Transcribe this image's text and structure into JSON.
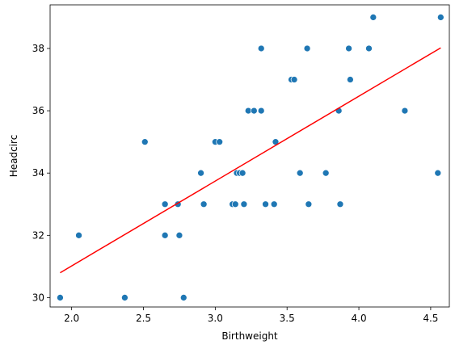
{
  "chart_data": {
    "type": "scatter",
    "title": "",
    "xlabel": "Birthweight",
    "ylabel": "Headcirc",
    "xlim": [
      1.85,
      4.63
    ],
    "ylim": [
      29.7,
      39.4
    ],
    "xticks": [
      2.0,
      2.5,
      3.0,
      3.5,
      4.0,
      4.5
    ],
    "xtick_labels": [
      "2.0",
      "2.5",
      "3.0",
      "3.5",
      "4.0",
      "4.5"
    ],
    "yticks": [
      30,
      32,
      34,
      36,
      38
    ],
    "ytick_labels": [
      "30",
      "32",
      "34",
      "36",
      "38"
    ],
    "grid": false,
    "points": [
      {
        "x": 1.92,
        "y": 30
      },
      {
        "x": 2.05,
        "y": 32
      },
      {
        "x": 2.37,
        "y": 30
      },
      {
        "x": 2.51,
        "y": 35
      },
      {
        "x": 2.65,
        "y": 33
      },
      {
        "x": 2.65,
        "y": 32
      },
      {
        "x": 2.74,
        "y": 33
      },
      {
        "x": 2.75,
        "y": 32
      },
      {
        "x": 2.78,
        "y": 30
      },
      {
        "x": 2.9,
        "y": 34
      },
      {
        "x": 2.92,
        "y": 33
      },
      {
        "x": 3.0,
        "y": 35
      },
      {
        "x": 3.03,
        "y": 35
      },
      {
        "x": 3.12,
        "y": 33
      },
      {
        "x": 3.14,
        "y": 33
      },
      {
        "x": 3.15,
        "y": 34
      },
      {
        "x": 3.17,
        "y": 34
      },
      {
        "x": 3.19,
        "y": 34
      },
      {
        "x": 3.2,
        "y": 33
      },
      {
        "x": 3.23,
        "y": 36
      },
      {
        "x": 3.27,
        "y": 36
      },
      {
        "x": 3.32,
        "y": 36
      },
      {
        "x": 3.32,
        "y": 38
      },
      {
        "x": 3.35,
        "y": 33
      },
      {
        "x": 3.41,
        "y": 33
      },
      {
        "x": 3.42,
        "y": 35
      },
      {
        "x": 3.53,
        "y": 37
      },
      {
        "x": 3.55,
        "y": 37
      },
      {
        "x": 3.59,
        "y": 34
      },
      {
        "x": 3.64,
        "y": 38
      },
      {
        "x": 3.65,
        "y": 33
      },
      {
        "x": 3.77,
        "y": 34
      },
      {
        "x": 3.86,
        "y": 36
      },
      {
        "x": 3.87,
        "y": 33
      },
      {
        "x": 3.93,
        "y": 38
      },
      {
        "x": 3.94,
        "y": 37
      },
      {
        "x": 4.07,
        "y": 38
      },
      {
        "x": 4.1,
        "y": 39
      },
      {
        "x": 4.32,
        "y": 36
      },
      {
        "x": 4.55,
        "y": 34
      },
      {
        "x": 4.57,
        "y": 39
      }
    ],
    "regression_line": {
      "x": [
        1.92,
        4.57
      ],
      "y": [
        30.8,
        38.02
      ]
    },
    "colors": {
      "points": "#1f77b4",
      "line": "#ff0000"
    }
  }
}
